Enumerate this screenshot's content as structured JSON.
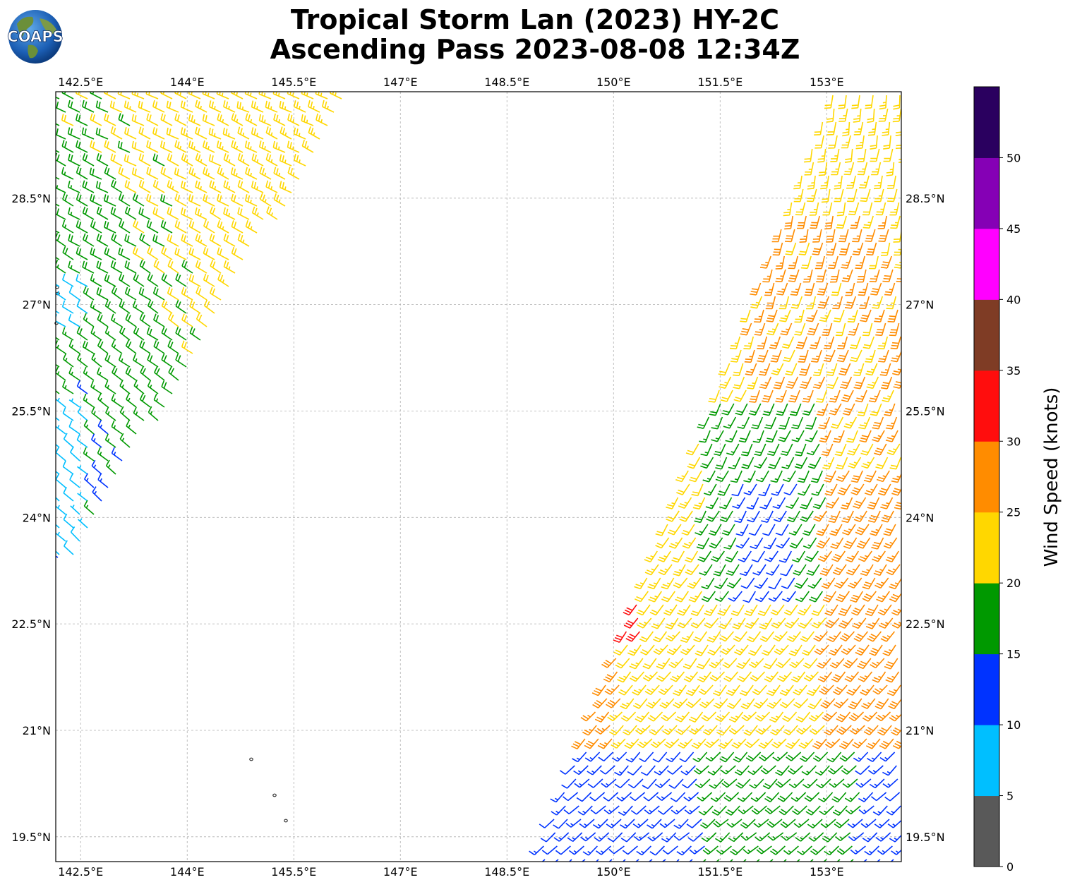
{
  "header": {
    "title_line1": "Tropical Storm Lan (2023) HY-2C",
    "title_line2": "Ascending Pass 2023-08-08 12:34Z",
    "logo_text": "COAPS"
  },
  "map": {
    "lon_ticks": [
      "142.5°E",
      "144°E",
      "145.5°E",
      "147°E",
      "148.5°E",
      "150°E",
      "151.5°E",
      "153°E"
    ],
    "lat_ticks": [
      "28.5°N",
      "27°N",
      "25.5°N",
      "24°N",
      "22.5°N",
      "21°N",
      "19.5°N"
    ],
    "lon_range": [
      142.15,
      154.05
    ],
    "lat_range": [
      30.0,
      19.15
    ]
  },
  "colorbar": {
    "title": "Wind Speed (knots)",
    "ticks": [
      "0",
      "5",
      "10",
      "15",
      "20",
      "25",
      "30",
      "35",
      "40",
      "45",
      "50"
    ],
    "colors": [
      "#595959",
      "#00bfff",
      "#0033ff",
      "#009900",
      "#ffd700",
      "#ff8c00",
      "#ff0d0d",
      "#7f3c25",
      "#ff00ff",
      "#8500b5",
      "#2a005f"
    ]
  },
  "chart_data": {
    "type": "wind-barbs",
    "units": "knots",
    "swaths": [
      {
        "name": "",
        "lon_range": [
          142.15,
          146.4
        ],
        "lat_range": [
          23.6,
          30.0
        ],
        "speed_range": [
          5,
          25
        ]
      },
      {
        "name": "",
        "lon_range": [
          148.9,
          154.05
        ],
        "lat_range": [
          19.15,
          30.0
        ],
        "speed_range": [
          10,
          35
        ]
      }
    ]
  }
}
